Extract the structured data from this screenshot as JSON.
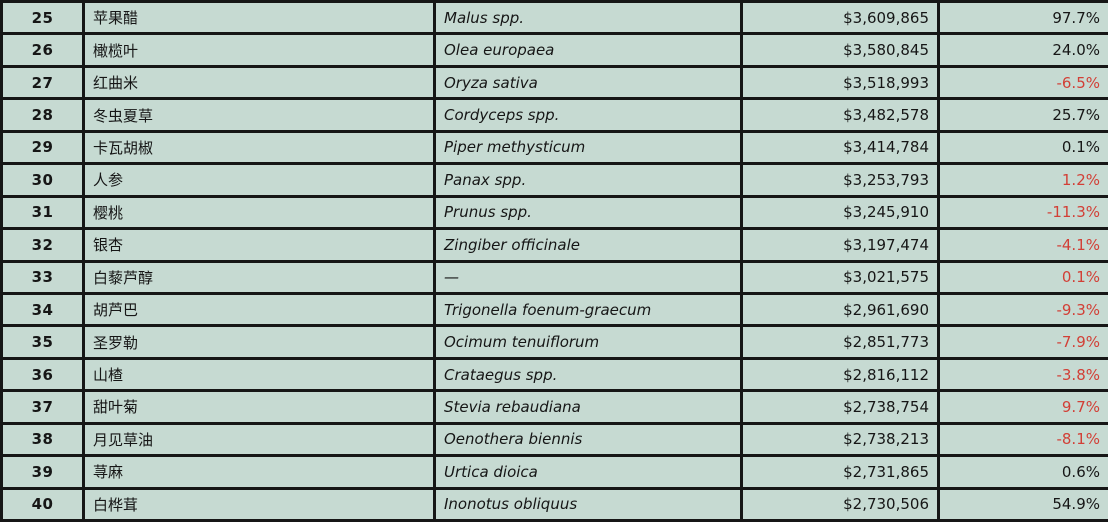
{
  "colors": {
    "background": "#c6dad2",
    "grid_border": "#161616",
    "text": "#161616",
    "negative_red": "#d23f36"
  },
  "table": {
    "rows": [
      {
        "rank": "25",
        "name_cn": "苹果醋",
        "latin": "Malus spp.",
        "amount": "$3,609,865",
        "percent": "97.7%",
        "percent_red": false
      },
      {
        "rank": "26",
        "name_cn": "橄榄叶",
        "latin": "Olea europaea",
        "amount": "$3,580,845",
        "percent": "24.0%",
        "percent_red": false
      },
      {
        "rank": "27",
        "name_cn": "红曲米",
        "latin": "Oryza sativa",
        "amount": "$3,518,993",
        "percent": "-6.5%",
        "percent_red": true
      },
      {
        "rank": "28",
        "name_cn": "冬虫夏草",
        "latin": "Cordyceps spp.",
        "amount": "$3,482,578",
        "percent": "25.7%",
        "percent_red": false
      },
      {
        "rank": "29",
        "name_cn": "卡瓦胡椒",
        "latin": "Piper methysticum",
        "amount": "$3,414,784",
        "percent": "0.1%",
        "percent_red": false
      },
      {
        "rank": "30",
        "name_cn": "人参",
        "latin": "Panax spp.",
        "amount": "$3,253,793",
        "percent": "1.2%",
        "percent_red": true
      },
      {
        "rank": "31",
        "name_cn": "樱桃",
        "latin": "Prunus spp.",
        "amount": "$3,245,910",
        "percent": "-11.3%",
        "percent_red": true
      },
      {
        "rank": "32",
        "name_cn": "银杏",
        "latin": "Zingiber officinale",
        "amount": "$3,197,474",
        "percent": "-4.1%",
        "percent_red": true
      },
      {
        "rank": "33",
        "name_cn": "白藜芦醇",
        "latin": "—",
        "amount": "$3,021,575",
        "percent": "0.1%",
        "percent_red": true
      },
      {
        "rank": "34",
        "name_cn": "胡芦巴",
        "latin": "Trigonella foenum-graecum",
        "amount": "$2,961,690",
        "percent": "-9.3%",
        "percent_red": true
      },
      {
        "rank": "35",
        "name_cn": "圣罗勒",
        "latin": "Ocimum tenuiflorum",
        "amount": "$2,851,773",
        "percent": "-7.9%",
        "percent_red": true
      },
      {
        "rank": "36",
        "name_cn": "山楂",
        "latin": "Crataegus spp.",
        "amount": "$2,816,112",
        "percent": "-3.8%",
        "percent_red": true
      },
      {
        "rank": "37",
        "name_cn": "甜叶菊",
        "latin": "Stevia rebaudiana",
        "amount": "$2,738,754",
        "percent": "9.7%",
        "percent_red": true
      },
      {
        "rank": "38",
        "name_cn": "月见草油",
        "latin": "Oenothera biennis",
        "amount": "$2,738,213",
        "percent": "-8.1%",
        "percent_red": true
      },
      {
        "rank": "39",
        "name_cn": "荨麻",
        "latin": "Urtica dioica",
        "amount": "$2,731,865",
        "percent": "0.6%",
        "percent_red": false
      },
      {
        "rank": "40",
        "name_cn": "白桦茸",
        "latin": "Inonotus obliquus",
        "amount": "$2,730,506",
        "percent": "54.9%",
        "percent_red": false
      }
    ]
  }
}
